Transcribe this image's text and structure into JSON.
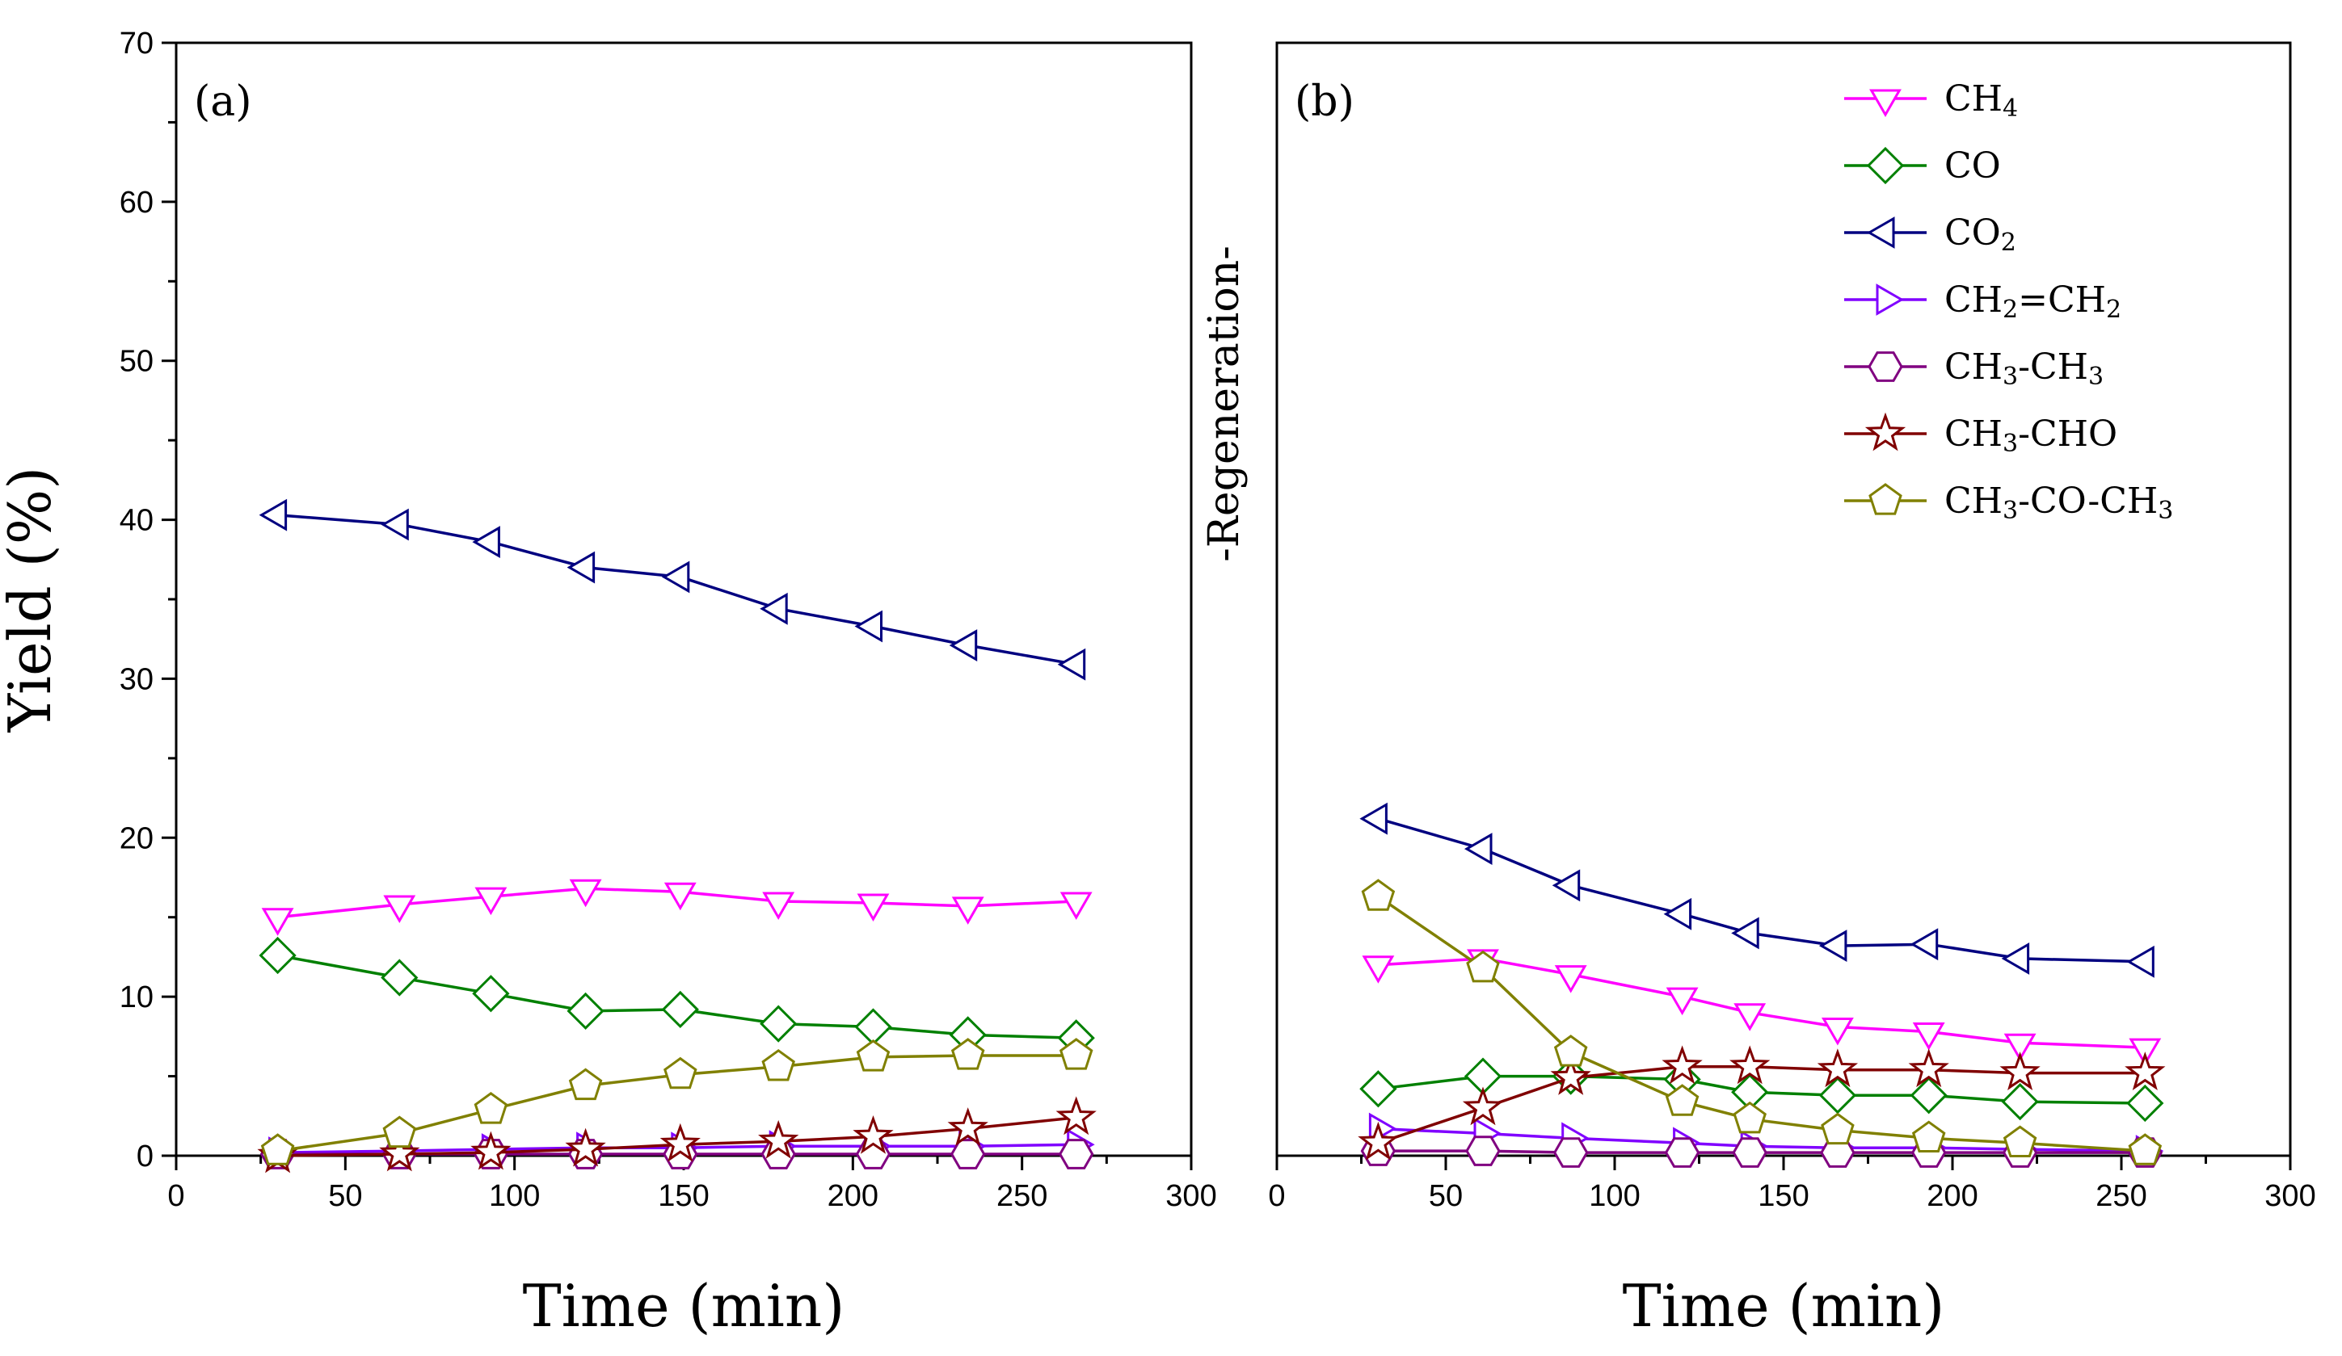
{
  "chart_data": [
    {
      "panel_label": "(a)",
      "type": "line",
      "xlabel": "Time (min)",
      "ylabel": "Yield (%)",
      "xlim": [
        0,
        300
      ],
      "ylim": [
        0,
        70
      ],
      "x_ticks": [
        0,
        50,
        100,
        150,
        200,
        250,
        300
      ],
      "y_ticks": [
        0,
        10,
        20,
        30,
        40,
        50,
        60,
        70
      ],
      "x": [
        30,
        66,
        93,
        121,
        149,
        178,
        206,
        234,
        266
      ],
      "grid": false,
      "series": [
        {
          "key": "ch4",
          "values": [
            15.0,
            15.8,
            16.3,
            16.8,
            16.6,
            16.0,
            15.9,
            15.7,
            16.0
          ]
        },
        {
          "key": "co",
          "values": [
            12.6,
            11.2,
            10.2,
            9.1,
            9.2,
            8.3,
            8.1,
            7.6,
            7.4
          ]
        },
        {
          "key": "co2",
          "values": [
            40.3,
            39.7,
            38.6,
            37.0,
            36.4,
            34.4,
            33.3,
            32.1,
            30.9
          ]
        },
        {
          "key": "c2h4",
          "values": [
            0.2,
            0.3,
            0.4,
            0.5,
            0.5,
            0.6,
            0.6,
            0.6,
            0.7
          ]
        },
        {
          "key": "c2h6",
          "values": [
            0.1,
            0.1,
            0.1,
            0.1,
            0.1,
            0.1,
            0.1,
            0.1,
            0.1
          ]
        },
        {
          "key": "ch3cho",
          "values": [
            0.0,
            0.1,
            0.2,
            0.4,
            0.7,
            0.9,
            1.2,
            1.7,
            2.4
          ]
        },
        {
          "key": "acetone",
          "values": [
            0.3,
            1.4,
            2.9,
            4.4,
            5.1,
            5.6,
            6.2,
            6.3,
            6.3
          ]
        }
      ]
    },
    {
      "panel_label": "(b)",
      "type": "line",
      "xlabel": "Time (min)",
      "side_label": "-Regeneration-",
      "xlim": [
        0,
        300
      ],
      "ylim": [
        0,
        70
      ],
      "x_ticks": [
        0,
        50,
        100,
        150,
        200,
        250,
        300
      ],
      "x": [
        30,
        61,
        87,
        120,
        140,
        166,
        193,
        220,
        257
      ],
      "grid": false,
      "series": [
        {
          "key": "ch4",
          "values": [
            12.0,
            12.4,
            11.4,
            10.0,
            9.0,
            8.1,
            7.8,
            7.1,
            6.8
          ]
        },
        {
          "key": "co",
          "values": [
            4.2,
            5.0,
            5.0,
            4.8,
            4.0,
            3.8,
            3.8,
            3.4,
            3.3
          ]
        },
        {
          "key": "co2",
          "values": [
            21.2,
            19.3,
            17.0,
            15.2,
            14.0,
            13.2,
            13.3,
            12.4,
            12.2
          ]
        },
        {
          "key": "c2h4",
          "values": [
            1.7,
            1.4,
            1.1,
            0.8,
            0.6,
            0.5,
            0.5,
            0.4,
            0.3
          ]
        },
        {
          "key": "c2h6",
          "values": [
            0.3,
            0.3,
            0.2,
            0.2,
            0.2,
            0.2,
            0.2,
            0.2,
            0.2
          ]
        },
        {
          "key": "ch3cho",
          "values": [
            0.8,
            3.0,
            4.9,
            5.6,
            5.6,
            5.4,
            5.4,
            5.2,
            5.2
          ]
        },
        {
          "key": "acetone",
          "values": [
            16.3,
            11.8,
            6.5,
            3.4,
            2.3,
            1.6,
            1.1,
            0.8,
            0.3
          ]
        }
      ]
    }
  ],
  "legend": {
    "placement": "top-right of panel (b)",
    "entries": [
      {
        "key": "ch4",
        "parts": [
          [
            "CH",
            ""
          ],
          [
            "4",
            "sub"
          ]
        ],
        "color": "#ff00ff",
        "marker": "triangle-down"
      },
      {
        "key": "co",
        "parts": [
          [
            "CO",
            ""
          ]
        ],
        "color": "#008000",
        "marker": "diamond"
      },
      {
        "key": "co2",
        "parts": [
          [
            "CO",
            ""
          ],
          [
            "2",
            "sub"
          ]
        ],
        "color": "#000080",
        "marker": "triangle-left"
      },
      {
        "key": "c2h4",
        "parts": [
          [
            "CH",
            ""
          ],
          [
            "2",
            "sub"
          ],
          [
            "=CH",
            ""
          ],
          [
            "2",
            "sub"
          ]
        ],
        "color": "#8000ff",
        "marker": "triangle-right"
      },
      {
        "key": "c2h6",
        "parts": [
          [
            "CH",
            ""
          ],
          [
            "3",
            "sub"
          ],
          [
            "-CH",
            ""
          ],
          [
            "3",
            "sub"
          ]
        ],
        "color": "#800080",
        "marker": "hexagon"
      },
      {
        "key": "ch3cho",
        "parts": [
          [
            "CH",
            ""
          ],
          [
            "3",
            "sub"
          ],
          [
            "-CHO",
            ""
          ]
        ],
        "color": "#800000",
        "marker": "star"
      },
      {
        "key": "acetone",
        "parts": [
          [
            "CH",
            ""
          ],
          [
            "3",
            "sub"
          ],
          [
            "-CO-CH",
            ""
          ],
          [
            "3",
            "sub"
          ]
        ],
        "color": "#808000",
        "marker": "pentagon"
      }
    ]
  }
}
